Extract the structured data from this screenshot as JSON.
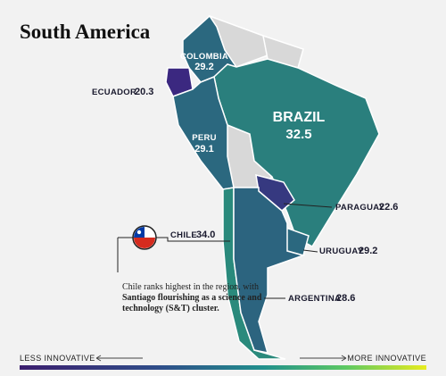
{
  "title": "South America",
  "countries": [
    {
      "name": "COLOMBIA",
      "value": 29.2
    },
    {
      "name": "ECUADOR",
      "value": 20.3
    },
    {
      "name": "BRAZIL",
      "value": 32.5
    },
    {
      "name": "PERU",
      "value": 29.1
    },
    {
      "name": "CHILE",
      "value": 34.0,
      "value_label": "34.0"
    },
    {
      "name": "PARAGUAY",
      "value": 22.6
    },
    {
      "name": "URUGUAY",
      "value": 29.2
    },
    {
      "name": "ARGENTINA",
      "value": 28.6
    }
  ],
  "annotation": {
    "lines": [
      "Chile ranks highest in the region, with",
      "Santiago flourishing as a science and",
      "technology (S&T) cluster."
    ]
  },
  "legend": {
    "low": "LESS INNOVATIVE",
    "high": "MORE INNOVATIVE"
  }
}
